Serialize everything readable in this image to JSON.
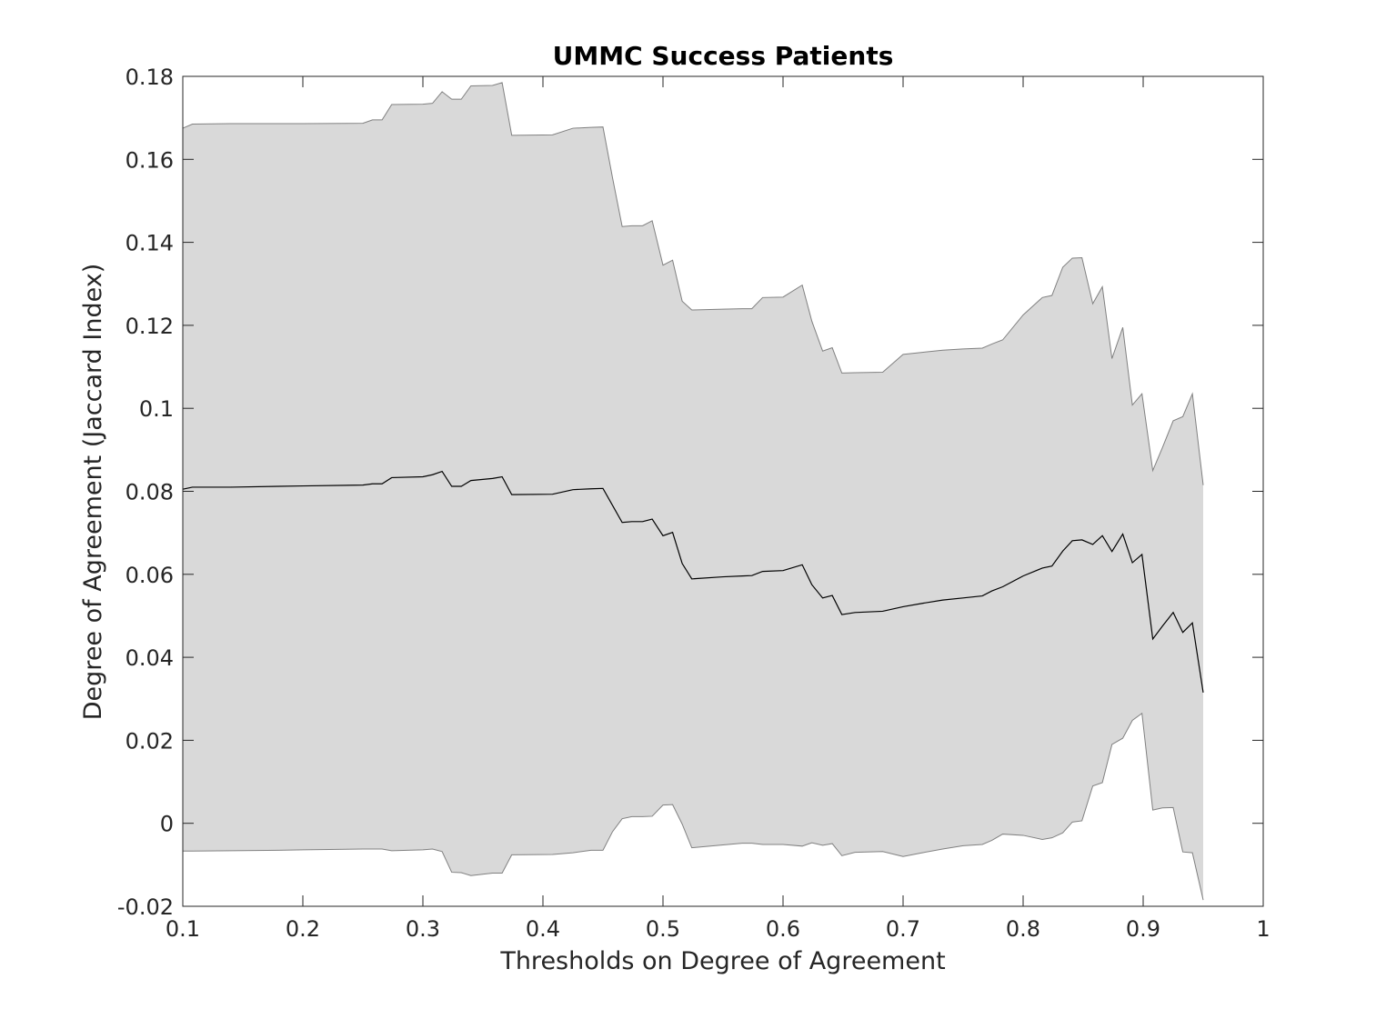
{
  "colors": {
    "band_fill": "#d9d9d9",
    "band_edge": "#808080",
    "mean_line": "#000000",
    "axis": "#262626",
    "background": "#ffffff"
  },
  "chart_data": {
    "type": "area",
    "title": "UMMC Success Patients",
    "xlabel": "Thresholds on Degree of Agreement",
    "ylabel": "Degree of Agreement (Jaccard Index)",
    "xlim": [
      0.1,
      1
    ],
    "ylim": [
      -0.02,
      0.18
    ],
    "grid": false,
    "x_ticks": [
      0.1,
      0.2,
      0.3,
      0.4,
      0.5,
      0.6,
      0.7,
      0.8,
      0.9,
      1
    ],
    "x_tick_labels": [
      "0.1",
      "0.2",
      "0.3",
      "0.4",
      "0.5",
      "0.6",
      "0.7",
      "0.8",
      "0.9",
      "1"
    ],
    "y_ticks": [
      -0.02,
      0,
      0.02,
      0.04,
      0.06,
      0.08,
      0.1,
      0.12,
      0.14,
      0.16,
      0.18
    ],
    "y_tick_labels": [
      "-0.02",
      "0",
      "0.02",
      "0.04",
      "0.06",
      "0.08",
      "0.1",
      "0.12",
      "0.14",
      "0.16",
      "0.18"
    ],
    "x": [
      0.1,
      0.108,
      0.14,
      0.18,
      0.2,
      0.25,
      0.258,
      0.266,
      0.274,
      0.3,
      0.308,
      0.316,
      0.324,
      0.332,
      0.34,
      0.358,
      0.366,
      0.374,
      0.408,
      0.425,
      0.44,
      0.45,
      0.458,
      0.466,
      0.474,
      0.483,
      0.491,
      0.5,
      0.508,
      0.516,
      0.524,
      0.55,
      0.566,
      0.574,
      0.583,
      0.6,
      0.616,
      0.624,
      0.633,
      0.641,
      0.649,
      0.66,
      0.683,
      0.7,
      0.716,
      0.733,
      0.75,
      0.766,
      0.774,
      0.783,
      0.8,
      0.816,
      0.824,
      0.833,
      0.841,
      0.849,
      0.858,
      0.866,
      0.874,
      0.883,
      0.891,
      0.899,
      0.908,
      0.916,
      0.925,
      0.933,
      0.941,
      0.95
    ],
    "series": [
      {
        "role": "mean",
        "values": [
          0.0805,
          0.081,
          0.081,
          0.0812,
          0.0813,
          0.0815,
          0.0818,
          0.0818,
          0.0833,
          0.0835,
          0.084,
          0.0848,
          0.0812,
          0.0812,
          0.0826,
          0.0831,
          0.0835,
          0.0792,
          0.0793,
          0.0804,
          0.0806,
          0.0807,
          0.0766,
          0.0725,
          0.0727,
          0.0727,
          0.0733,
          0.0693,
          0.0701,
          0.0626,
          0.0589,
          0.0594,
          0.0596,
          0.0597,
          0.0607,
          0.0609,
          0.0623,
          0.0575,
          0.0543,
          0.0549,
          0.0503,
          0.0508,
          0.0511,
          0.0522,
          0.053,
          0.0538,
          0.0543,
          0.0548,
          0.056,
          0.057,
          0.0596,
          0.0615,
          0.062,
          0.0656,
          0.0681,
          0.0683,
          0.0672,
          0.0693,
          0.0655,
          0.0697,
          0.0628,
          0.0648,
          0.0444,
          0.0475,
          0.0508,
          0.046,
          0.0483,
          0.0315
        ]
      },
      {
        "role": "upper",
        "values": [
          0.1675,
          0.1685,
          0.1686,
          0.1686,
          0.1686,
          0.1687,
          0.1695,
          0.1695,
          0.1732,
          0.1733,
          0.1735,
          0.1763,
          0.1745,
          0.1745,
          0.1777,
          0.1778,
          0.1785,
          0.1658,
          0.1659,
          0.1675,
          0.1677,
          0.1678,
          0.1555,
          0.1438,
          0.144,
          0.144,
          0.1452,
          0.1345,
          0.1357,
          0.1258,
          0.1237,
          0.1239,
          0.124,
          0.124,
          0.1267,
          0.1268,
          0.1297,
          0.121,
          0.1138,
          0.1146,
          0.1085,
          0.1086,
          0.1087,
          0.113,
          0.1135,
          0.114,
          0.1143,
          0.1145,
          0.1155,
          0.1165,
          0.1225,
          0.1267,
          0.1272,
          0.134,
          0.1362,
          0.1363,
          0.1252,
          0.1293,
          0.112,
          0.1195,
          0.1008,
          0.1035,
          0.085,
          0.0905,
          0.097,
          0.098,
          0.1035,
          0.0815
        ]
      },
      {
        "role": "lower",
        "values": [
          -0.0067,
          -0.0067,
          -0.0066,
          -0.0065,
          -0.0064,
          -0.0062,
          -0.0062,
          -0.0062,
          -0.0066,
          -0.0064,
          -0.0062,
          -0.0068,
          -0.0118,
          -0.0119,
          -0.0126,
          -0.012,
          -0.012,
          -0.0076,
          -0.0075,
          -0.0071,
          -0.0065,
          -0.0065,
          -0.002,
          0.0011,
          0.0016,
          0.0016,
          0.0017,
          0.0044,
          0.0045,
          -0.0002,
          -0.0059,
          -0.0052,
          -0.0048,
          -0.0048,
          -0.0051,
          -0.0051,
          -0.0055,
          -0.0047,
          -0.0053,
          -0.0049,
          -0.0078,
          -0.007,
          -0.0068,
          -0.008,
          -0.0071,
          -0.0062,
          -0.0054,
          -0.0051,
          -0.0041,
          -0.0026,
          -0.0029,
          -0.0039,
          -0.0035,
          -0.0023,
          0.0003,
          0.0006,
          0.009,
          0.0098,
          0.019,
          0.0205,
          0.0248,
          0.0265,
          0.0032,
          0.0037,
          0.0038,
          -0.0069,
          -0.0071,
          -0.0185
        ]
      }
    ]
  }
}
